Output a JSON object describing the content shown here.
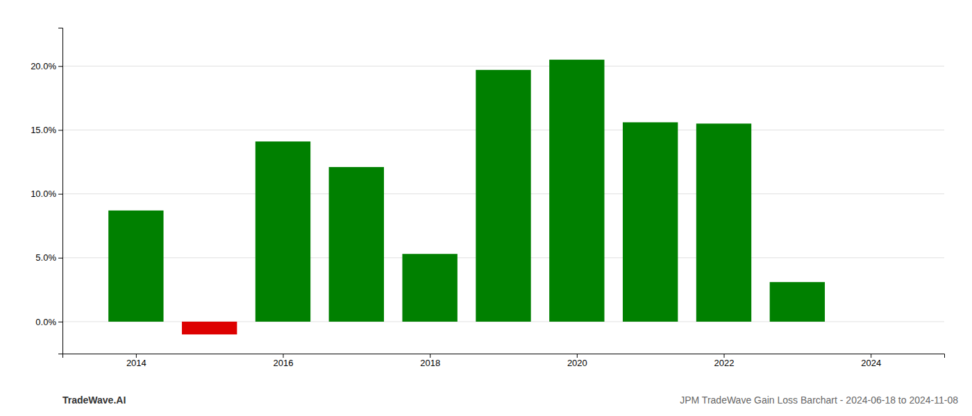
{
  "chart_data": {
    "type": "bar",
    "x": [
      2014,
      2015,
      2016,
      2017,
      2018,
      2019,
      2020,
      2021,
      2022,
      2023
    ],
    "values": [
      8.7,
      -1.0,
      14.1,
      12.1,
      5.3,
      19.7,
      20.5,
      15.6,
      15.5,
      3.1
    ],
    "colors": [
      "#008000",
      "#dd0000",
      "#008000",
      "#008000",
      "#008000",
      "#008000",
      "#008000",
      "#008000",
      "#008000",
      "#008000"
    ],
    "xlim": [
      2013.0,
      2025.0
    ],
    "xticks": [
      2014,
      2016,
      2018,
      2020,
      2022,
      2024
    ],
    "ylim": [
      -2.5,
      23.0
    ],
    "yticks": [
      {
        "value": 0.0,
        "label": "0.0%"
      },
      {
        "value": 5.0,
        "label": "5.0%"
      },
      {
        "value": 10.0,
        "label": "10.0%"
      },
      {
        "value": 15.0,
        "label": "15.0%"
      },
      {
        "value": 20.0,
        "label": "20.0%"
      }
    ],
    "grid": true,
    "annotations": [
      "TradeWave.AI",
      "JPM TradeWave Gain Loss Barchart - 2024-06-18 to 2024-11-08"
    ]
  }
}
